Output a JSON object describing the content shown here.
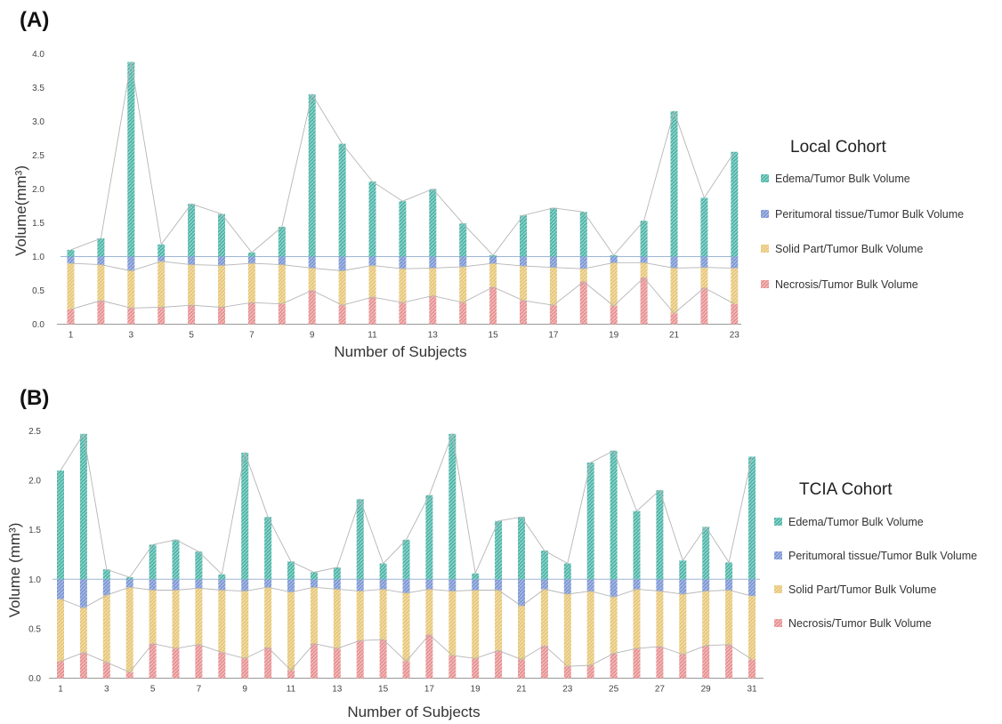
{
  "chart_data": [
    {
      "panel_label": "(A)",
      "type": "bar",
      "stacked": true,
      "title": "Local Cohort",
      "xlabel": "Number of Subjects",
      "ylabel": "Volume(mm³)",
      "ylim": [
        0,
        4
      ],
      "yticks": [
        "0.0",
        "0.5",
        "1.0",
        "1.5",
        "2.0",
        "2.5",
        "3.0",
        "3.5",
        "4.0"
      ],
      "categories": [
        "1",
        "2",
        "3",
        "4",
        "5",
        "6",
        "7",
        "8",
        "9",
        "10",
        "11",
        "12",
        "13",
        "14",
        "15",
        "16",
        "17",
        "18",
        "19",
        "20",
        "21",
        "22",
        "23"
      ],
      "xtick_labels": [
        "1",
        "",
        "3",
        "",
        "5",
        "",
        "7",
        "",
        "9",
        "",
        "11",
        "",
        "13",
        "",
        "15",
        "",
        "17",
        "",
        "19",
        "",
        "21",
        "",
        "23"
      ],
      "series": [
        {
          "name": "Necrosis/Tumor Bulk Volume",
          "values": [
            0.22,
            0.35,
            0.24,
            0.25,
            0.28,
            0.25,
            0.32,
            0.3,
            0.5,
            0.28,
            0.4,
            0.32,
            0.42,
            0.32,
            0.55,
            0.35,
            0.28,
            0.63,
            0.27,
            0.69,
            0.16,
            0.54,
            0.3
          ]
        },
        {
          "name": "Solid Part/Tumor Bulk Volume",
          "values": [
            0.68,
            0.53,
            0.55,
            0.68,
            0.6,
            0.62,
            0.58,
            0.58,
            0.33,
            0.51,
            0.47,
            0.5,
            0.41,
            0.53,
            0.35,
            0.51,
            0.56,
            0.19,
            0.64,
            0.22,
            0.67,
            0.3,
            0.53
          ]
        },
        {
          "name": "Peritumoral tissue/Tumor Bulk Volume",
          "values": [
            0.1,
            0.12,
            0.21,
            0.07,
            0.12,
            0.13,
            0.1,
            0.12,
            0.17,
            0.21,
            0.13,
            0.18,
            0.17,
            0.15,
            0.1,
            0.14,
            0.16,
            0.18,
            0.09,
            0.09,
            0.17,
            0.16,
            0.17
          ]
        },
        {
          "name": "Edema/Tumor Bulk Volume",
          "values": [
            0.1,
            0.27,
            2.88,
            0.18,
            0.78,
            0.63,
            0.06,
            0.44,
            2.4,
            1.67,
            1.11,
            0.82,
            1.0,
            0.49,
            0.02,
            0.61,
            0.72,
            0.66,
            0.02,
            0.53,
            2.15,
            0.87,
            1.55
          ]
        }
      ]
    },
    {
      "panel_label": "(B)",
      "type": "bar",
      "stacked": true,
      "title": "TCIA Cohort",
      "xlabel": "Number of Subjects",
      "ylabel": "Volume (mm³)",
      "ylim": [
        0,
        2.5
      ],
      "yticks": [
        "0.0",
        "0.5",
        "1.0",
        "1.5",
        "2.0",
        "2.5"
      ],
      "categories": [
        "1",
        "2",
        "3",
        "4",
        "5",
        "6",
        "7",
        "8",
        "9",
        "10",
        "11",
        "12",
        "13",
        "14",
        "15",
        "16",
        "17",
        "18",
        "19",
        "20",
        "21",
        "22",
        "23",
        "24",
        "25",
        "26",
        "27",
        "28",
        "29",
        "30",
        "31"
      ],
      "xtick_labels": [
        "1",
        "",
        "3",
        "",
        "5",
        "",
        "7",
        "",
        "9",
        "",
        "11",
        "",
        "13",
        "",
        "15",
        "",
        "17",
        "",
        "19",
        "",
        "21",
        "",
        "23",
        "",
        "25",
        "",
        "27",
        "",
        "29",
        "",
        "31"
      ],
      "series": [
        {
          "name": "Necrosis/Tumor Bulk Volume",
          "values": [
            0.17,
            0.26,
            0.16,
            0.06,
            0.35,
            0.3,
            0.34,
            0.26,
            0.2,
            0.31,
            0.08,
            0.35,
            0.3,
            0.38,
            0.39,
            0.17,
            0.44,
            0.23,
            0.2,
            0.28,
            0.19,
            0.33,
            0.12,
            0.13,
            0.25,
            0.3,
            0.32,
            0.24,
            0.33,
            0.34,
            0.19
          ]
        },
        {
          "name": "Solid Part/Tumor Bulk Volume",
          "values": [
            0.63,
            0.45,
            0.68,
            0.86,
            0.54,
            0.59,
            0.57,
            0.63,
            0.68,
            0.61,
            0.79,
            0.57,
            0.6,
            0.5,
            0.51,
            0.69,
            0.46,
            0.65,
            0.69,
            0.61,
            0.54,
            0.57,
            0.73,
            0.75,
            0.57,
            0.6,
            0.56,
            0.61,
            0.55,
            0.55,
            0.64
          ]
        },
        {
          "name": "Peritumoral tissue/Tumor Bulk Volume",
          "values": [
            0.2,
            0.29,
            0.16,
            0.08,
            0.11,
            0.11,
            0.09,
            0.11,
            0.12,
            0.08,
            0.13,
            0.08,
            0.1,
            0.12,
            0.1,
            0.14,
            0.1,
            0.12,
            0.11,
            0.11,
            0.27,
            0.1,
            0.15,
            0.12,
            0.18,
            0.1,
            0.12,
            0.15,
            0.12,
            0.11,
            0.17
          ]
        },
        {
          "name": "Edema/Tumor Bulk Volume",
          "values": [
            1.1,
            1.47,
            0.1,
            0.02,
            0.35,
            0.4,
            0.28,
            0.05,
            1.28,
            0.63,
            0.18,
            0.07,
            0.12,
            0.81,
            0.16,
            0.4,
            0.85,
            1.47,
            0.06,
            0.59,
            0.63,
            0.29,
            0.16,
            1.18,
            1.3,
            0.69,
            0.9,
            0.19,
            0.53,
            0.17,
            1.24
          ]
        }
      ]
    }
  ],
  "colors": {
    "necrosis": "#E79191",
    "solid": "#E7C77A",
    "peritumoral": "#7D97D3",
    "edema": "#4EB5A8",
    "edema_legend": "#3FA896",
    "outline": "#b5b5b5",
    "refline": "#9fb5d6",
    "axis": "#999999"
  }
}
